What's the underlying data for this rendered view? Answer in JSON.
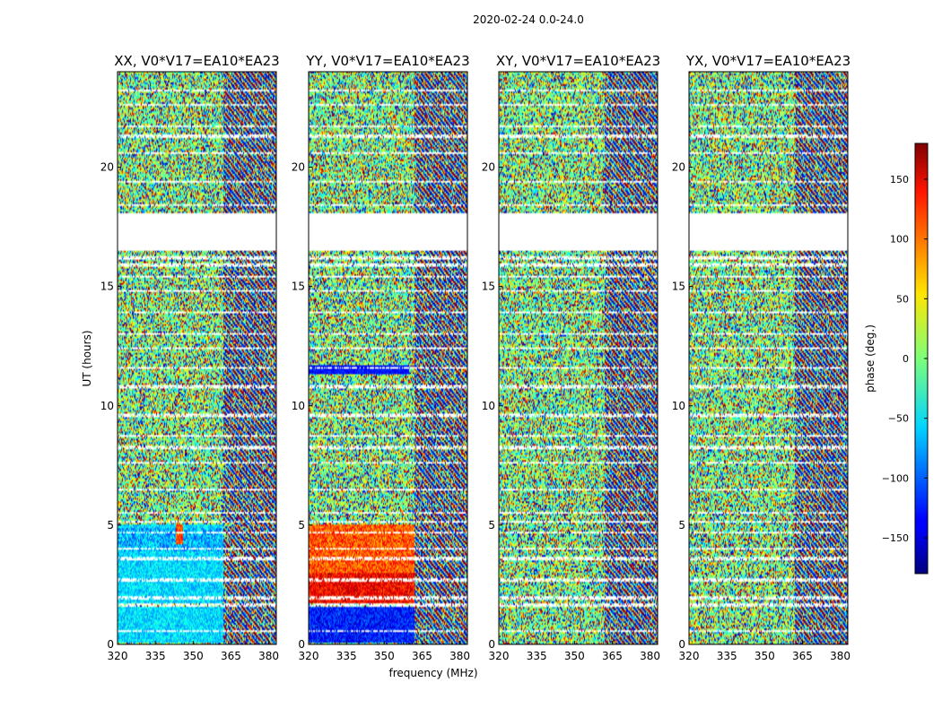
{
  "chart_data": {
    "type": "heatmap",
    "suptitle": "2020-02-24 0.0-24.0",
    "xlabel": "frequency (MHz)",
    "ylabel": "UT (hours)",
    "xlim": [
      320,
      383
    ],
    "ylim": [
      0,
      24
    ],
    "x_ticks": [
      320,
      335,
      350,
      365,
      380
    ],
    "y_ticks": [
      0,
      5,
      10,
      15,
      20
    ],
    "colorbar": {
      "label": "phase (deg.)",
      "range": [
        -180,
        180
      ],
      "ticks": [
        150,
        100,
        50,
        0,
        -50,
        -100,
        -150
      ],
      "tick_labels": [
        "150",
        "100",
        "50",
        "0",
        "−50",
        "−100",
        "−150"
      ],
      "colormap": "jet"
    },
    "flagged_ut_ranges": [
      [
        18.1,
        16.5
      ]
    ],
    "panels": [
      {
        "title": "XX, V0*V17=EA10*EA23",
        "name": "xx"
      },
      {
        "title": "YY, V0*V17=EA10*EA23",
        "name": "yy"
      },
      {
        "title": "XY, V0*V17=EA10*EA23",
        "name": "xy"
      },
      {
        "title": "YX, V0*V17=EA10*EA23",
        "name": "yx"
      }
    ]
  }
}
